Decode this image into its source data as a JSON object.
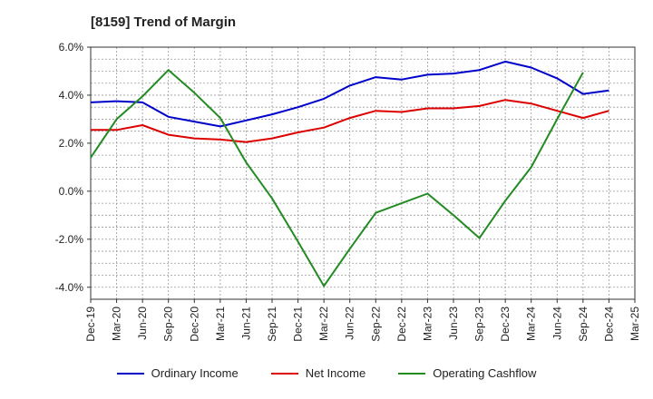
{
  "chart_data": {
    "type": "line",
    "title": "[8159]  Trend of Margin",
    "x": [
      "Dec-19",
      "Mar-20",
      "Jun-20",
      "Sep-20",
      "Dec-20",
      "Mar-21",
      "Jun-21",
      "Sep-21",
      "Dec-21",
      "Mar-22",
      "Jun-22",
      "Sep-22",
      "Dec-22",
      "Mar-23",
      "Jun-23",
      "Sep-23",
      "Dec-23",
      "Mar-24",
      "Jun-24",
      "Sep-24",
      "Dec-24",
      "Mar-25"
    ],
    "ylim": [
      -4.5,
      6.0
    ],
    "yticks": [
      -4.0,
      -2.0,
      0.0,
      2.0,
      4.0,
      6.0
    ],
    "ytick_labels": [
      "-4.0%",
      "-2.0%",
      "0.0%",
      "2.0%",
      "4.0%",
      "6.0%"
    ],
    "grid": true,
    "legend_position": "bottom",
    "series": [
      {
        "name": "Ordinary Income",
        "color": "#0000cc",
        "values": [
          3.7,
          3.75,
          3.7,
          3.1,
          2.9,
          2.7,
          2.95,
          3.2,
          3.5,
          3.85,
          4.4,
          4.75,
          4.65,
          4.85,
          4.9,
          5.05,
          5.4,
          5.15,
          4.7,
          4.05,
          4.2,
          null
        ]
      },
      {
        "name": "Net Income",
        "color": "#dd0000",
        "values": [
          2.55,
          2.55,
          2.75,
          2.35,
          2.2,
          2.15,
          2.05,
          2.2,
          2.45,
          2.65,
          3.05,
          3.35,
          3.3,
          3.45,
          3.45,
          3.55,
          3.8,
          3.65,
          3.35,
          3.05,
          3.35,
          null
        ]
      },
      {
        "name": "Operating Cashflow",
        "color": "#228B22",
        "values": [
          1.4,
          3.0,
          3.95,
          5.05,
          4.1,
          3.05,
          1.2,
          -0.3,
          -2.1,
          -3.95,
          -2.4,
          -0.9,
          -0.5,
          -0.1,
          -1.0,
          -1.95,
          -0.4,
          1.0,
          3.0,
          4.95,
          null,
          null
        ]
      }
    ]
  }
}
